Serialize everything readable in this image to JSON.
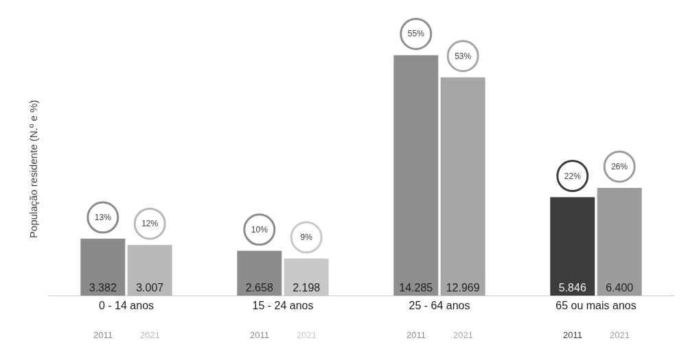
{
  "chart_data": {
    "type": "bar",
    "ylabel": "População residente (N.º e %)",
    "categories": [
      "0 - 14 anos",
      "15 - 24 anos",
      "25 - 64 anos",
      "65 ou mais anos"
    ],
    "series": [
      {
        "name": "2011",
        "colors": [
          "#8a8a8a",
          "#8c8c8c",
          "#8e8e8e",
          "#3c3c3c"
        ],
        "values": [
          3382,
          2658,
          14285,
          5846
        ],
        "value_labels": [
          "3.382",
          "2.658",
          "14.285",
          "5.846"
        ]
      },
      {
        "name": "2021",
        "colors": [
          "#b8b8b8",
          "#c8c8c8",
          "#a6a6a6",
          "#9c9c9c"
        ],
        "values": [
          3007,
          2198,
          12969,
          6400
        ],
        "value_labels": [
          "3.007",
          "2.198",
          "12.969",
          "6.400"
        ]
      }
    ],
    "tick_labels": "x",
    "annotations": [
      {
        "text": "13%",
        "x": "0 - 14 anos",
        "y": 3382
      },
      {
        "text": "12%",
        "x": "0 - 14 anos",
        "y": 3007
      },
      {
        "text": "10%",
        "x": "15 - 24 anos",
        "y": 2658
      },
      {
        "text": "9%",
        "x": "15 - 24 anos",
        "y": 2198
      },
      {
        "text": "55%",
        "x": "25 - 64 anos",
        "y": 14285
      },
      {
        "text": "53%",
        "x": "25 - 64 anos",
        "y": 12969
      },
      {
        "text": "22%",
        "x": "65 ou mais anos",
        "y": 5846
      },
      {
        "text": "26%",
        "x": "65 ou mais anos",
        "y": 6400
      }
    ]
  }
}
